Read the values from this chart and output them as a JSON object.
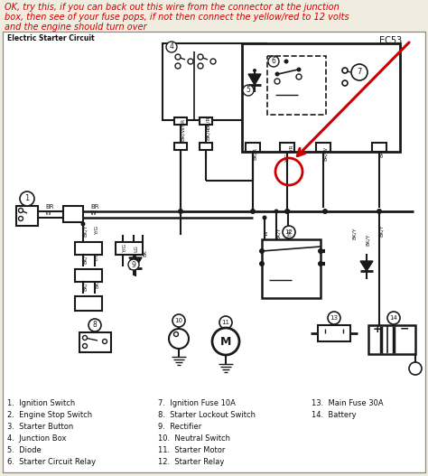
{
  "annotation_text": "OK, try this, if you can back out this wire from the connector at the junction\nbox, then see of your fuse pops, if not then connect the yellow/red to 12 volts\nand the engine should turn over",
  "annotation_color": "#cc0000",
  "title_text": "Electric Starter Circuit",
  "ec_label": "EC53",
  "bg_color": "#f0ece0",
  "diagram_bg": "#ffffff",
  "lc": "#1a1a1a",
  "rc": "#cc0000",
  "legend_col1": [
    "1.  Ignition Switch",
    "2.  Engine Stop Switch",
    "3.  Starter Button",
    "4.  Junction Box",
    "5.  Diode",
    "6.  Starter Circuit Relay"
  ],
  "legend_col2": [
    "7.  Ignition Fuse 10A",
    "8.  Starter Lockout Switch",
    "9.  Rectifier",
    "10.  Neutral Switch",
    "11.  Starter Motor",
    "12.  Starter Relay"
  ],
  "legend_col3": [
    "13.  Main Fuse 30A",
    "14.  Battery"
  ],
  "figsize": [
    4.74,
    5.27
  ],
  "dpi": 100
}
